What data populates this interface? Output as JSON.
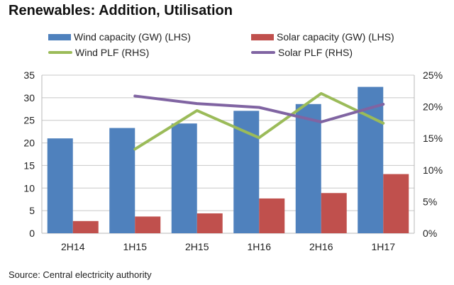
{
  "chart_data": {
    "type": "bar",
    "title": "Renewables: Addition, Utilisation",
    "categories": [
      "2H14",
      "1H15",
      "2H15",
      "1H16",
      "2H16",
      "1H17"
    ],
    "series": [
      {
        "name": "Wind capacity (GW) (LHS)",
        "kind": "bar",
        "axis": "left",
        "color": "#4F81BD",
        "values": [
          21.0,
          23.3,
          24.3,
          27.1,
          28.6,
          32.4
        ]
      },
      {
        "name": "Solar capacity (GW) (LHS)",
        "kind": "bar",
        "axis": "left",
        "color": "#C0504D",
        "values": [
          2.7,
          3.7,
          4.4,
          7.7,
          8.9,
          13.1
        ]
      },
      {
        "name": "Wind PLF (RHS)",
        "kind": "line",
        "axis": "right",
        "color": "#9BBB59",
        "values": [
          null,
          13.3,
          19.4,
          15.1,
          22.1,
          17.4
        ]
      },
      {
        "name": "Solar PLF (RHS)",
        "kind": "line",
        "axis": "right",
        "color": "#8064A2",
        "values": [
          null,
          21.7,
          20.5,
          19.9,
          17.6,
          20.4
        ]
      }
    ],
    "xlabel": "",
    "ylabel": "",
    "ylim": [
      0,
      35
    ],
    "yticks": [
      "0",
      "5",
      "10",
      "15",
      "20",
      "25",
      "30",
      "35"
    ],
    "y2lim": [
      0,
      25
    ],
    "y2ticks": [
      "0%",
      "5%",
      "10%",
      "15%",
      "20%",
      "25%"
    ],
    "grid": true,
    "legend": "top"
  },
  "source": "Source: Central electricity authority"
}
